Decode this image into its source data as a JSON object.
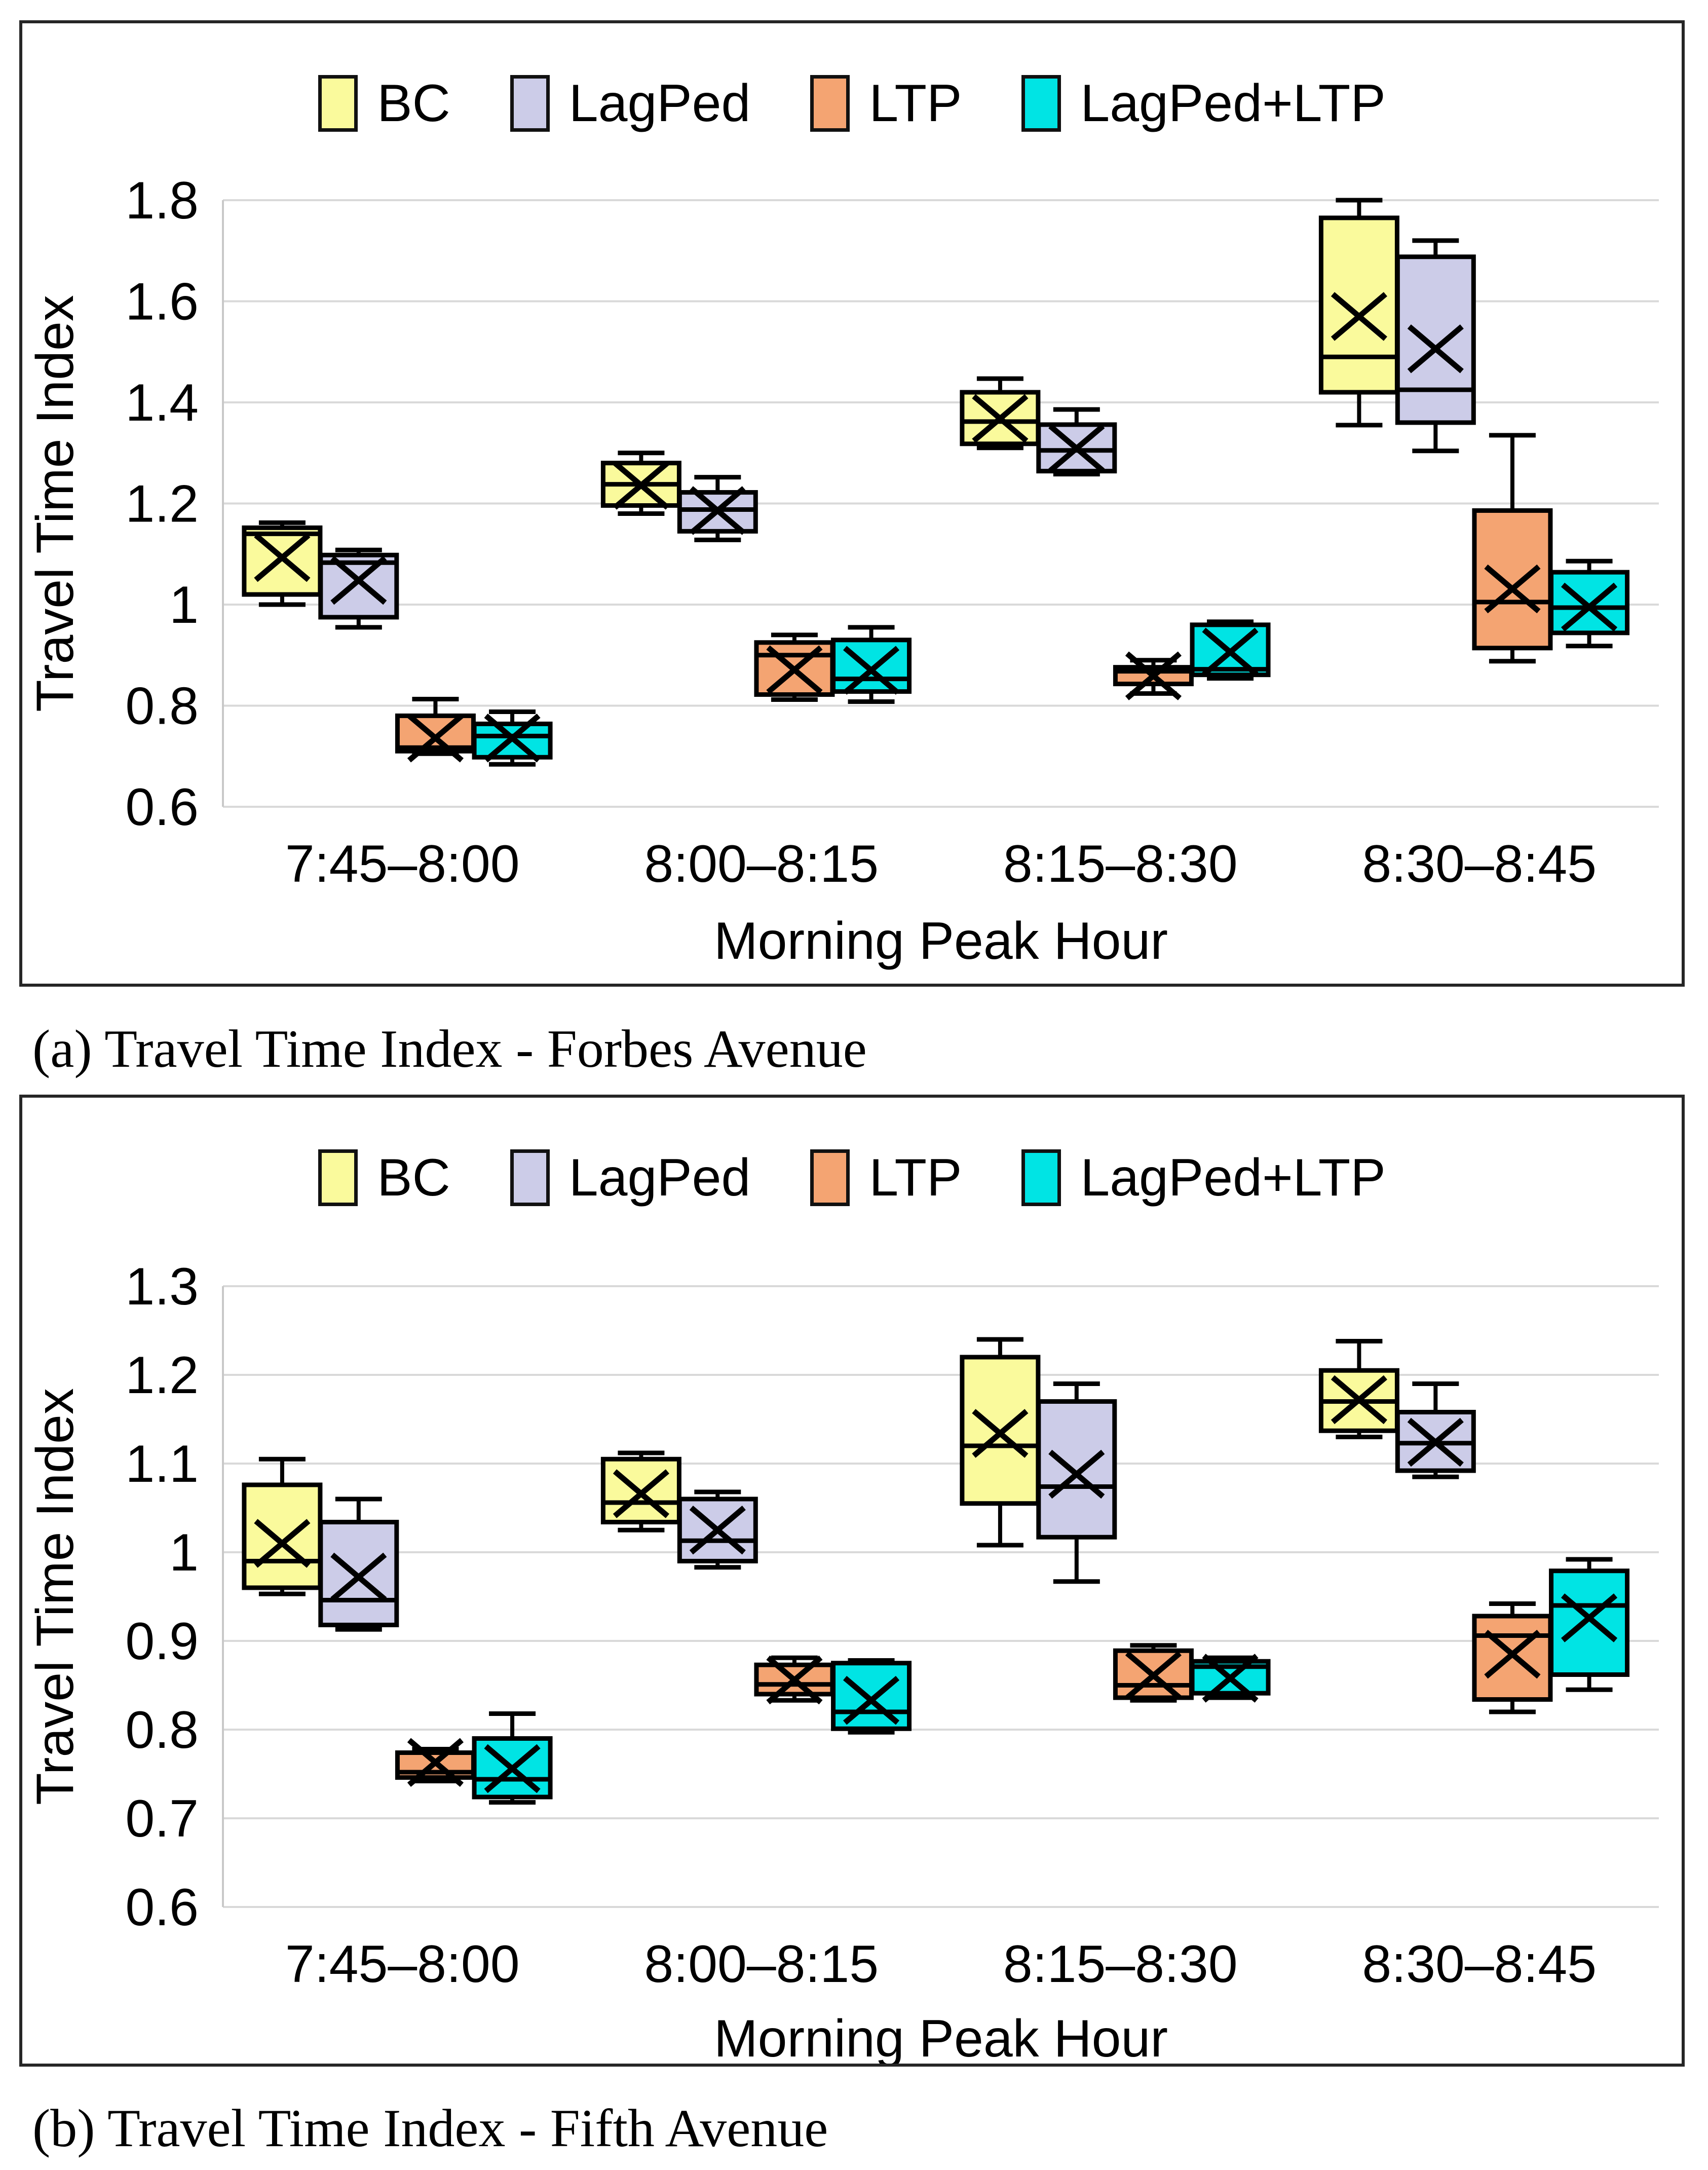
{
  "captions": {
    "a": "(a) Travel Time Index - Forbes Avenue",
    "b": "(b) Travel Time Index - Fifth Avenue"
  },
  "chart_data": [
    {
      "type": "boxplot",
      "panel": "a",
      "ylabel": "Travel Time Index",
      "xlabel": "Morning Peak Hour",
      "ylim": [
        0.6,
        1.8
      ],
      "ytick_step": 0.2,
      "yticks": [
        "1.8",
        "1.6",
        "1.4",
        "1.2",
        "1",
        "0.8",
        "0.6"
      ],
      "grid": "horizontal",
      "legend_position": "top-center",
      "categories": [
        "7:45–8:00",
        "8:00–8:15",
        "8:15–8:30",
        "8:30–8:45"
      ],
      "series": [
        {
          "name": "BC",
          "color": "#FAFA9C",
          "values": [
            {
              "whisker_low": 1.0,
              "q1": 1.02,
              "median": 1.14,
              "q3": 1.152,
              "whisker_high": 1.162,
              "mean": 1.093
            },
            {
              "whisker_low": 1.18,
              "q1": 1.196,
              "median": 1.238,
              "q3": 1.28,
              "whisker_high": 1.3,
              "mean": 1.236
            },
            {
              "whisker_low": 1.31,
              "q1": 1.318,
              "median": 1.362,
              "q3": 1.42,
              "whisker_high": 1.447,
              "mean": 1.368
            },
            {
              "whisker_low": 1.355,
              "q1": 1.42,
              "median": 1.49,
              "q3": 1.765,
              "whisker_high": 1.8,
              "mean": 1.57
            }
          ]
        },
        {
          "name": "LagPed",
          "color": "#CCCCE8",
          "values": [
            {
              "whisker_low": 0.955,
              "q1": 0.975,
              "median": 1.083,
              "q3": 1.098,
              "whisker_high": 1.108,
              "mean": 1.048
            },
            {
              "whisker_low": 1.128,
              "q1": 1.145,
              "median": 1.188,
              "q3": 1.222,
              "whisker_high": 1.252,
              "mean": 1.186
            },
            {
              "whisker_low": 1.258,
              "q1": 1.264,
              "median": 1.305,
              "q3": 1.356,
              "whisker_high": 1.386,
              "mean": 1.309
            },
            {
              "whisker_low": 1.304,
              "q1": 1.36,
              "median": 1.425,
              "q3": 1.688,
              "whisker_high": 1.72,
              "mean": 1.506
            }
          ]
        },
        {
          "name": "LTP",
          "color": "#F4A472",
          "values": [
            {
              "whisker_low": 0.705,
              "q1": 0.71,
              "median": 0.717,
              "q3": 0.78,
              "whisker_high": 0.813,
              "mean": 0.736
            },
            {
              "whisker_low": 0.812,
              "q1": 0.822,
              "median": 0.9,
              "q3": 0.925,
              "whisker_high": 0.94,
              "mean": 0.871
            },
            {
              "whisker_low": 0.824,
              "q1": 0.843,
              "median": 0.868,
              "q3": 0.876,
              "whisker_high": 0.89,
              "mean": 0.859
            },
            {
              "whisker_low": 0.888,
              "q1": 0.914,
              "median": 1.005,
              "q3": 1.186,
              "whisker_high": 1.335,
              "mean": 1.031
            }
          ]
        },
        {
          "name": "LagPed+LTP",
          "color": "#00E4E4",
          "values": [
            {
              "whisker_low": 0.684,
              "q1": 0.698,
              "median": 0.74,
              "q3": 0.764,
              "whisker_high": 0.788,
              "mean": 0.736
            },
            {
              "whisker_low": 0.808,
              "q1": 0.828,
              "median": 0.853,
              "q3": 0.93,
              "whisker_high": 0.955,
              "mean": 0.87
            },
            {
              "whisker_low": 0.854,
              "q1": 0.861,
              "median": 0.872,
              "q3": 0.96,
              "whisker_high": 0.966,
              "mean": 0.906
            },
            {
              "whisker_low": 0.918,
              "q1": 0.944,
              "median": 0.994,
              "q3": 1.064,
              "whisker_high": 1.086,
              "mean": 0.995
            }
          ]
        }
      ]
    },
    {
      "type": "boxplot",
      "panel": "b",
      "ylabel": "Travel Time Index",
      "xlabel": "Morning Peak Hour",
      "ylim": [
        0.6,
        1.3
      ],
      "ytick_step": 0.1,
      "yticks": [
        "1.3",
        "1.2",
        "1.1",
        "1",
        "0.9",
        "0.8",
        "0.7",
        "0.6"
      ],
      "grid": "horizontal",
      "legend_position": "top-center",
      "categories": [
        "7:45–8:00",
        "8:00–8:15",
        "8:15–8:30",
        "8:30–8:45"
      ],
      "series": [
        {
          "name": "BC",
          "color": "#FAFA9C",
          "values": [
            {
              "whisker_low": 0.953,
              "q1": 0.96,
              "median": 0.99,
              "q3": 1.076,
              "whisker_high": 1.105,
              "mean": 1.01
            },
            {
              "whisker_low": 1.025,
              "q1": 1.034,
              "median": 1.056,
              "q3": 1.105,
              "whisker_high": 1.112,
              "mean": 1.066
            },
            {
              "whisker_low": 1.008,
              "q1": 1.055,
              "median": 1.12,
              "q3": 1.22,
              "whisker_high": 1.24,
              "mean": 1.134
            },
            {
              "whisker_low": 1.13,
              "q1": 1.137,
              "median": 1.17,
              "q3": 1.205,
              "whisker_high": 1.238,
              "mean": 1.172
            }
          ]
        },
        {
          "name": "LagPed",
          "color": "#CCCCE8",
          "values": [
            {
              "whisker_low": 0.913,
              "q1": 0.918,
              "median": 0.946,
              "q3": 1.034,
              "whisker_high": 1.06,
              "mean": 0.972
            },
            {
              "whisker_low": 0.983,
              "q1": 0.99,
              "median": 1.013,
              "q3": 1.06,
              "whisker_high": 1.068,
              "mean": 1.025
            },
            {
              "whisker_low": 0.967,
              "q1": 1.017,
              "median": 1.074,
              "q3": 1.17,
              "whisker_high": 1.19,
              "mean": 1.088
            },
            {
              "whisker_low": 1.085,
              "q1": 1.092,
              "median": 1.123,
              "q3": 1.158,
              "whisker_high": 1.19,
              "mean": 1.124
            }
          ]
        },
        {
          "name": "LTP",
          "color": "#F4A472",
          "values": [
            {
              "whisker_low": 0.742,
              "q1": 0.746,
              "median": 0.752,
              "q3": 0.774,
              "whisker_high": 0.778,
              "mean": 0.763
            },
            {
              "whisker_low": 0.833,
              "q1": 0.84,
              "median": 0.851,
              "q3": 0.873,
              "whisker_high": 0.881,
              "mean": 0.856
            },
            {
              "whisker_low": 0.833,
              "q1": 0.836,
              "median": 0.85,
              "q3": 0.889,
              "whisker_high": 0.895,
              "mean": 0.861
            },
            {
              "whisker_low": 0.82,
              "q1": 0.834,
              "median": 0.906,
              "q3": 0.928,
              "whisker_high": 0.942,
              "mean": 0.885
            }
          ]
        },
        {
          "name": "LagPed+LTP",
          "color": "#00E4E4",
          "values": [
            {
              "whisker_low": 0.718,
              "q1": 0.724,
              "median": 0.744,
              "q3": 0.79,
              "whisker_high": 0.818,
              "mean": 0.756
            },
            {
              "whisker_low": 0.797,
              "q1": 0.801,
              "median": 0.82,
              "q3": 0.875,
              "whisker_high": 0.878,
              "mean": 0.833
            },
            {
              "whisker_low": 0.836,
              "q1": 0.841,
              "median": 0.871,
              "q3": 0.877,
              "whisker_high": 0.881,
              "mean": 0.858
            },
            {
              "whisker_low": 0.845,
              "q1": 0.862,
              "median": 0.94,
              "q3": 0.979,
              "whisker_high": 0.992,
              "mean": 0.926
            }
          ]
        }
      ]
    }
  ],
  "style_colors": {
    "gridline": "#D9D9D9",
    "axis_line": "#C8C8C8",
    "box_border": "#000000",
    "panel_border": "#262626"
  }
}
